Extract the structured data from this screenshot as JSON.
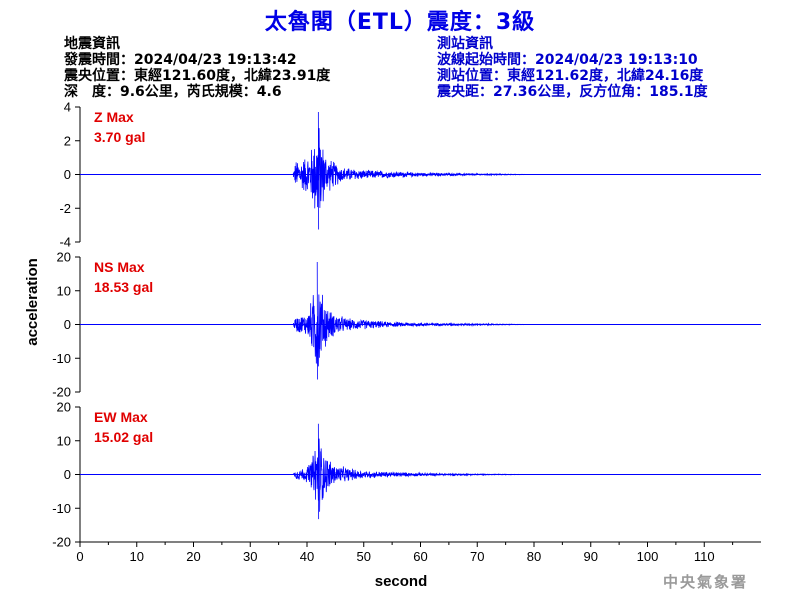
{
  "header": {
    "title": "太魯閣（ETL）震度：3級"
  },
  "quake_info": {
    "heading": "地震資訊",
    "origin_time": "發震時間：2024/04/23 19:13:42",
    "epicenter": "震央位置：東經121.60度，北緯23.91度",
    "depth_magnitude": "深　度：9.6公里，芮氏規模：4.6"
  },
  "station_info": {
    "heading": "測站資訊",
    "wave_start": "波線起始時間：2024/04/23 19:13:10",
    "station_location": "測站位置：東經121.62度，北緯24.16度",
    "distance_azimuth": "震央距：27.36公里，反方位角：185.1度"
  },
  "watermark": "中央氣象署",
  "colors": {
    "title": "#0000e6",
    "trace": "#0000ff",
    "max_label": "#e00000",
    "station_text": "#0000cc"
  },
  "chart_data": {
    "type": "line",
    "xlabel": "second",
    "ylabel": "acceleration",
    "xlim": [
      0,
      120
    ],
    "x_ticks": [
      0,
      10,
      20,
      30,
      40,
      50,
      60,
      70,
      80,
      90,
      100,
      110
    ],
    "grid": false,
    "panels": [
      {
        "name": "Z Max",
        "max_text": "3.70 gal",
        "max_value": 3.7,
        "ylim": [
          -4,
          4
        ],
        "y_ticks": [
          4,
          2,
          0,
          -2,
          -4
        ],
        "envelope": [
          {
            "t": 37.5,
            "amp": 0.0
          },
          {
            "t": 38.0,
            "amp": 0.9
          },
          {
            "t": 39.0,
            "amp": 1.0
          },
          {
            "t": 40.5,
            "amp": 1.4
          },
          {
            "t": 41.5,
            "amp": 2.8
          },
          {
            "t": 42.0,
            "amp": 3.6
          },
          {
            "t": 42.5,
            "amp": 2.4
          },
          {
            "t": 43.5,
            "amp": 1.2
          },
          {
            "t": 46.0,
            "amp": 0.5
          },
          {
            "t": 50.0,
            "amp": 0.3
          },
          {
            "t": 60.0,
            "amp": 0.12
          },
          {
            "t": 70.0,
            "amp": 0.06
          },
          {
            "t": 80.0,
            "amp": 0.0
          }
        ]
      },
      {
        "name": "NS Max",
        "max_text": "18.53 gal",
        "max_value": 18.53,
        "ylim": [
          -20,
          20
        ],
        "y_ticks": [
          20,
          10,
          0,
          -10,
          -20
        ],
        "envelope": [
          {
            "t": 37.5,
            "amp": 0.0
          },
          {
            "t": 38.0,
            "amp": 2.5
          },
          {
            "t": 40.0,
            "amp": 3.5
          },
          {
            "t": 41.0,
            "amp": 9.0
          },
          {
            "t": 41.8,
            "amp": 18.5
          },
          {
            "t": 42.5,
            "amp": 11.0
          },
          {
            "t": 44.0,
            "amp": 4.5
          },
          {
            "t": 47.0,
            "amp": 2.0
          },
          {
            "t": 55.0,
            "amp": 0.8
          },
          {
            "t": 65.0,
            "amp": 0.4
          },
          {
            "t": 75.0,
            "amp": 0.15
          },
          {
            "t": 80.0,
            "amp": 0.0
          }
        ]
      },
      {
        "name": "EW Max",
        "max_text": "15.02 gal",
        "max_value": 15.02,
        "ylim": [
          -20,
          20
        ],
        "y_ticks": [
          20,
          10,
          0,
          -10,
          -20
        ],
        "envelope": [
          {
            "t": 37.5,
            "amp": 0.0
          },
          {
            "t": 38.0,
            "amp": 1.5
          },
          {
            "t": 40.0,
            "amp": 2.5
          },
          {
            "t": 41.0,
            "amp": 6.0
          },
          {
            "t": 42.0,
            "amp": 15.0
          },
          {
            "t": 43.0,
            "amp": 7.0
          },
          {
            "t": 45.0,
            "amp": 3.0
          },
          {
            "t": 50.0,
            "amp": 1.2
          },
          {
            "t": 60.0,
            "amp": 0.5
          },
          {
            "t": 70.0,
            "amp": 0.2
          },
          {
            "t": 80.0,
            "amp": 0.0
          }
        ]
      }
    ]
  }
}
